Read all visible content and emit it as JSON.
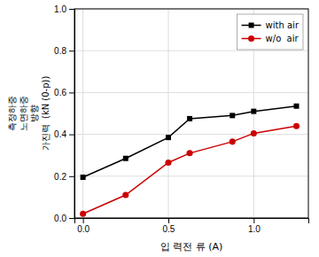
{
  "chart_data": {
    "type": "line",
    "xlabel": "입 력전 류 (A)",
    "ylabel": [
      "측정하중",
      "노면하중",
      "방향",
      "가진력  (kN (0-p))"
    ],
    "x": [
      0.0,
      0.25,
      0.5,
      0.625,
      0.875,
      1.0,
      1.25
    ],
    "series": [
      {
        "name": "with air",
        "color": "#000000",
        "marker": "square",
        "values": [
          0.195,
          0.285,
          0.385,
          0.475,
          0.49,
          0.51,
          0.535
        ]
      },
      {
        "name": "w/o  air",
        "color": "#cc0000",
        "marker": "circle",
        "values": [
          0.02,
          0.11,
          0.265,
          0.31,
          0.365,
          0.405,
          0.44
        ]
      }
    ],
    "xlim": [
      -0.05,
      1.32
    ],
    "ylim": [
      0.0,
      1.0
    ],
    "xticks": [
      {
        "value": 0.0,
        "label": "0.0"
      },
      0.5,
      {
        "value": 1.0,
        "label": "1.0"
      }
    ],
    "yticks": [
      {
        "value": 0.0,
        "label": "0.0"
      },
      0.2,
      0.4,
      0.6,
      0.8,
      {
        "value": 1.0,
        "label": "1.0"
      }
    ],
    "grid": true,
    "legend": "upper right"
  }
}
